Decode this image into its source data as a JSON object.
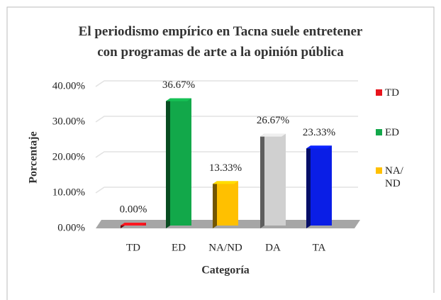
{
  "chart_data": {
    "type": "bar3d",
    "title": "El periodismo empírico en Tacna suele entretener con programas de arte a la opinión pública",
    "categories": [
      "TD",
      "ED",
      "NA/ND",
      "DA",
      "TA"
    ],
    "values": [
      0,
      36.67,
      13.33,
      26.67,
      23.33
    ],
    "value_labels": [
      "0.00%",
      "36.67%",
      "13.33%",
      "26.67%",
      "23.33%"
    ],
    "colors": [
      "#e8141c",
      "#12a84a",
      "#ffc000",
      "#d0d0d0",
      "#0a1ee6"
    ],
    "ylim": [
      0,
      40
    ],
    "yticks": [
      {
        "value": 0,
        "label": "0.00%"
      },
      {
        "value": 10,
        "label": "10.00%"
      },
      {
        "value": 20,
        "label": "20.00%"
      },
      {
        "value": 30,
        "label": "30.00%"
      },
      {
        "value": 40,
        "label": "40.00%"
      }
    ],
    "grid": true,
    "xlabel": "Categoría",
    "ylabel": "Porcentaje",
    "legend": [
      "TD",
      "ED",
      "NA/ND"
    ],
    "legend_position": "right"
  }
}
